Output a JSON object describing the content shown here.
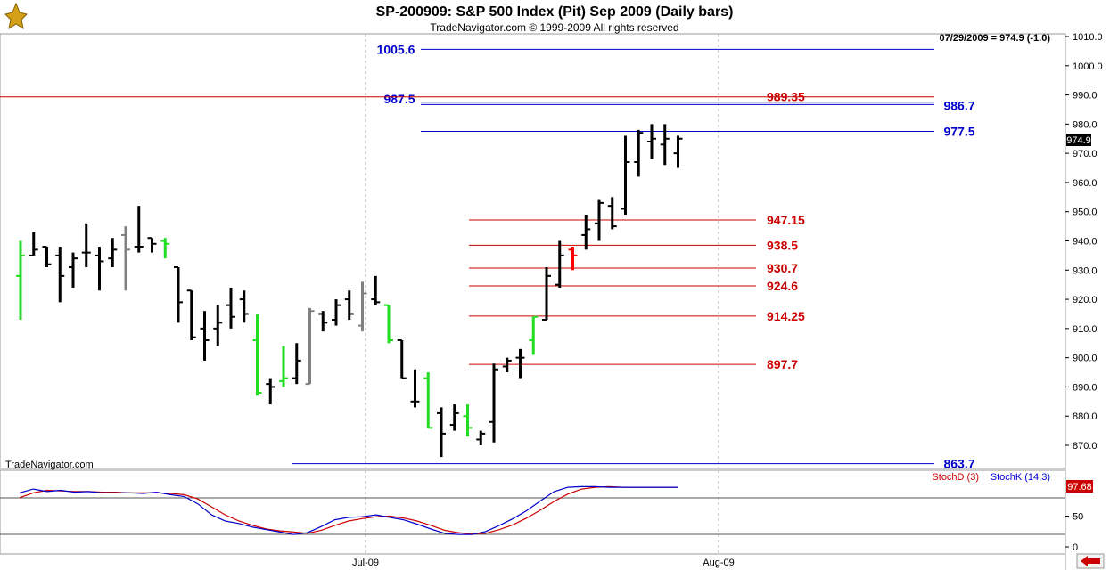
{
  "header": {
    "title": "SP-200909:  S&P 500 Index (Pit) Sep 2009  (Daily bars)",
    "copyright": "TradeNavigator.com © 1999-2009 All rights reserved",
    "last_value_note": "07/29/2009 = 974.9 (-1.0)",
    "watermark": "TradeNavigator.com"
  },
  "colors": {
    "up_bar": "#22dd22",
    "down_bar": "#000000",
    "gray_bar": "#808080",
    "red_bar": "#ff0000",
    "support_red": "#cc0000",
    "resistance_blue": "#0000cc",
    "stoch_d": "#cc0000",
    "stoch_k": "#0000cc",
    "price_tag_bg": "#000000",
    "stoch_tag_bg": "#cc0000",
    "nav_arrow": "#cc0000"
  },
  "icons": {
    "app_logo": "tradenavigator-logo-icon",
    "scroll_left": "red-left-arrow-icon"
  },
  "chart_data": [
    {
      "type": "ohlc",
      "title": "SP-200909:  S&P 500 Index (Pit) Sep 2009  (Daily bars)",
      "ylim": [
        863,
        1012
      ],
      "yticks": [
        "870.0",
        "880.0",
        "890.0",
        "900.0",
        "910.0",
        "920.0",
        "930.0",
        "940.0",
        "950.0",
        "960.0",
        "970.0",
        "980.0",
        "990.0",
        "1000.0",
        "1010.0"
      ],
      "x_labels": [
        "Jul-09",
        "Aug-09"
      ],
      "current_price_tag": "974.9",
      "bars": [
        {
          "o": 928,
          "h": 940,
          "l": 913,
          "c": 935,
          "color": "green"
        },
        {
          "o": 935,
          "h": 943,
          "l": 935,
          "c": 937,
          "color": "black"
        },
        {
          "o": 938,
          "h": 938,
          "l": 931,
          "c": 932,
          "color": "black"
        },
        {
          "o": 935,
          "h": 938,
          "l": 919,
          "c": 928,
          "color": "black"
        },
        {
          "o": 931,
          "h": 936,
          "l": 924,
          "c": 934,
          "color": "black"
        },
        {
          "o": 936,
          "h": 946,
          "l": 931,
          "c": 936,
          "color": "black"
        },
        {
          "o": 935,
          "h": 938,
          "l": 923,
          "c": 933,
          "color": "black"
        },
        {
          "o": 934,
          "h": 941,
          "l": 931,
          "c": 937,
          "color": "black"
        },
        {
          "o": 942,
          "h": 945,
          "l": 923,
          "c": 937,
          "color": "gray"
        },
        {
          "o": 938,
          "h": 952,
          "l": 936,
          "c": 938,
          "color": "black"
        },
        {
          "o": 941,
          "h": 941,
          "l": 936,
          "c": 939,
          "color": "black"
        },
        {
          "o": 940,
          "h": 941,
          "l": 934,
          "c": 939,
          "color": "green"
        },
        {
          "o": 931,
          "h": 931,
          "l": 912,
          "c": 919,
          "color": "black"
        },
        {
          "o": 923,
          "h": 923,
          "l": 906,
          "c": 907,
          "color": "black"
        },
        {
          "o": 910,
          "h": 916,
          "l": 899,
          "c": 906,
          "color": "black"
        },
        {
          "o": 910,
          "h": 918,
          "l": 904,
          "c": 912,
          "color": "black"
        },
        {
          "o": 918,
          "h": 924,
          "l": 910,
          "c": 914,
          "color": "black"
        },
        {
          "o": 920,
          "h": 923,
          "l": 912,
          "c": 915,
          "color": "black"
        },
        {
          "o": 906,
          "h": 915,
          "l": 887,
          "c": 888,
          "color": "green"
        },
        {
          "o": 891,
          "h": 893,
          "l": 884,
          "c": 890,
          "color": "black"
        },
        {
          "o": 892,
          "h": 904,
          "l": 890,
          "c": 893,
          "color": "green"
        },
        {
          "o": 893,
          "h": 905,
          "l": 891,
          "c": 899,
          "color": "black"
        },
        {
          "o": 891,
          "h": 917,
          "l": 891,
          "c": 916,
          "color": "gray"
        },
        {
          "o": 915,
          "h": 916,
          "l": 909,
          "c": 912,
          "color": "black"
        },
        {
          "o": 913,
          "h": 920,
          "l": 911,
          "c": 918,
          "color": "black"
        },
        {
          "o": 920,
          "h": 923,
          "l": 913,
          "c": 915,
          "color": "black"
        },
        {
          "o": 911,
          "h": 926,
          "l": 909,
          "c": 922,
          "color": "gray"
        },
        {
          "o": 920,
          "h": 928,
          "l": 918,
          "c": 919,
          "color": "black"
        },
        {
          "o": 918,
          "h": 918,
          "l": 905,
          "c": 906,
          "color": "green"
        },
        {
          "o": 906,
          "h": 906,
          "l": 893,
          "c": 893,
          "color": "black"
        },
        {
          "o": 885,
          "h": 896,
          "l": 883,
          "c": 885,
          "color": "black"
        },
        {
          "o": 893,
          "h": 895,
          "l": 876,
          "c": 876,
          "color": "green"
        },
        {
          "o": 881,
          "h": 883,
          "l": 866,
          "c": 874,
          "color": "black"
        },
        {
          "o": 877,
          "h": 884,
          "l": 875,
          "c": 881,
          "color": "black"
        },
        {
          "o": 880,
          "h": 884,
          "l": 873,
          "c": 876,
          "color": "green"
        },
        {
          "o": 872,
          "h": 875,
          "l": 870,
          "c": 874,
          "color": "black"
        },
        {
          "o": 878,
          "h": 898,
          "l": 871,
          "c": 896,
          "color": "black"
        },
        {
          "o": 897,
          "h": 900,
          "l": 895,
          "c": 899,
          "color": "black"
        },
        {
          "o": 900,
          "h": 903,
          "l": 893,
          "c": 900,
          "color": "black"
        },
        {
          "o": 906,
          "h": 914,
          "l": 901,
          "c": 914,
          "color": "green"
        },
        {
          "o": 913,
          "h": 931,
          "l": 913,
          "c": 928,
          "color": "black"
        },
        {
          "o": 925,
          "h": 940,
          "l": 924,
          "c": 935,
          "color": "black"
        },
        {
          "o": 937,
          "h": 938,
          "l": 930,
          "c": 935,
          "color": "red"
        },
        {
          "o": 942,
          "h": 949,
          "l": 937,
          "c": 944,
          "color": "black"
        },
        {
          "o": 946,
          "h": 954,
          "l": 940,
          "c": 953,
          "color": "black"
        },
        {
          "o": 952,
          "h": 955,
          "l": 944,
          "c": 945,
          "color": "black"
        },
        {
          "o": 951,
          "h": 976,
          "l": 949,
          "c": 967,
          "color": "black"
        },
        {
          "o": 967,
          "h": 978,
          "l": 962,
          "c": 977,
          "color": "black"
        },
        {
          "o": 974,
          "h": 980,
          "l": 968,
          "c": 975,
          "color": "black"
        },
        {
          "o": 973,
          "h": 980,
          "l": 966,
          "c": 975,
          "color": "black"
        },
        {
          "o": 970,
          "h": 976,
          "l": 965,
          "c": 975,
          "color": "black"
        }
      ]
    },
    {
      "type": "line",
      "panel": "stochastic",
      "ylim": [
        0,
        110
      ],
      "yticks": [
        "0",
        "50"
      ],
      "legend": [
        "StochD (3)",
        "StochK (14,3)"
      ],
      "current_value_tag": "97.68",
      "series": [
        {
          "name": "StochD (3)",
          "values": [
            80,
            88,
            92,
            91,
            90,
            90,
            89,
            89,
            88,
            88,
            88,
            87,
            85,
            78,
            65,
            52,
            42,
            35,
            29,
            26,
            24,
            22,
            27,
            35,
            42,
            46,
            49,
            50,
            47,
            42,
            35,
            27,
            23,
            21,
            22,
            28,
            36,
            47,
            60,
            74,
            86,
            94,
            97,
            98,
            97,
            97,
            97,
            97,
            97
          ]
        },
        {
          "name": "StochK (14,3)",
          "values": [
            88,
            94,
            90,
            92,
            89,
            90,
            88,
            88,
            88,
            87,
            89,
            85,
            82,
            70,
            52,
            42,
            38,
            32,
            28,
            24,
            20,
            23,
            33,
            44,
            48,
            49,
            52,
            48,
            44,
            37,
            29,
            22,
            20,
            20,
            25,
            35,
            46,
            59,
            75,
            90,
            97,
            98,
            98,
            97,
            97,
            97,
            97,
            97,
            97
          ]
        }
      ]
    }
  ],
  "levels": {
    "blue": [
      {
        "value": 1005.6,
        "label": "1005.6"
      },
      {
        "value": 987.5,
        "label": "987.5"
      },
      {
        "value": 986.7,
        "label": "986.7"
      },
      {
        "value": 977.5,
        "label": "977.5"
      },
      {
        "value": 863.7,
        "label": "863.7"
      }
    ],
    "red": [
      {
        "value": 989.35,
        "label": "989.35"
      },
      {
        "value": 947.15,
        "label": "947.15"
      },
      {
        "value": 938.5,
        "label": "938.5"
      },
      {
        "value": 930.7,
        "label": "930.7"
      },
      {
        "value": 924.6,
        "label": "924.6"
      },
      {
        "value": 914.25,
        "label": "914.25"
      },
      {
        "value": 897.7,
        "label": "897.7"
      }
    ]
  }
}
